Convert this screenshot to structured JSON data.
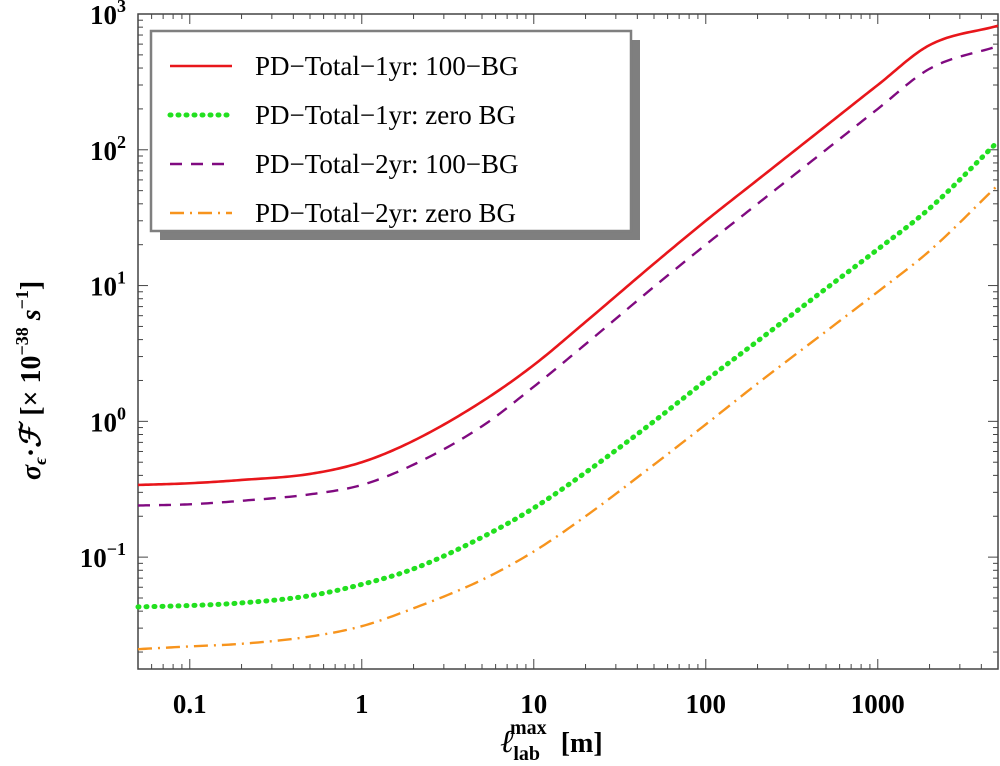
{
  "chart_data": {
    "type": "line",
    "title": "",
    "xlabel": {
      "base": "ℓ",
      "sup": "max",
      "sub": "lab",
      "unit": "[m]"
    },
    "ylabel": {
      "symbol": "σ",
      "sub": "ϵ",
      "dot": "·",
      "symbol2": "ℱ",
      "bracket_open": "[× 10",
      "exp": "−38",
      "unit": " s",
      "unit_exp": "−1",
      "bracket_close": "]"
    },
    "xscale": "log",
    "yscale": "log",
    "xlim": [
      0.05,
      5000
    ],
    "ylim": [
      0.015,
      1000
    ],
    "grid": false,
    "legend_position": "top-left",
    "x_ticks": [
      {
        "value": 0.1,
        "label": "0.1"
      },
      {
        "value": 1,
        "label": "1"
      },
      {
        "value": 10,
        "label": "10"
      },
      {
        "value": 100,
        "label": "100"
      },
      {
        "value": 1000,
        "label": "1000"
      }
    ],
    "y_ticks": [
      {
        "value": 0.1,
        "base": "10",
        "exp": "−1"
      },
      {
        "value": 1,
        "base": "10",
        "exp": "0"
      },
      {
        "value": 10,
        "base": "10",
        "exp": "1"
      },
      {
        "value": 100,
        "base": "10",
        "exp": "2"
      },
      {
        "value": 1000,
        "base": "10",
        "exp": "3"
      }
    ],
    "x": [
      0.05,
      0.1,
      0.2,
      0.5,
      1,
      2,
      5,
      10,
      20,
      50,
      100,
      200,
      500,
      1000,
      2000,
      5000
    ],
    "series": [
      {
        "name": "PD−Total−1yr: 100−BG",
        "color": "#e8161b",
        "style": "solid",
        "values": [
          0.34,
          0.35,
          0.37,
          0.41,
          0.5,
          0.72,
          1.4,
          2.6,
          5.4,
          14.5,
          30,
          60,
          150,
          300,
          590,
          820
        ]
      },
      {
        "name": "PD−Total−1yr: zero BG",
        "color": "#22e01f",
        "style": "dotted",
        "values": [
          0.043,
          0.044,
          0.046,
          0.052,
          0.063,
          0.082,
          0.14,
          0.23,
          0.42,
          1.0,
          2.0,
          3.9,
          9.5,
          18.5,
          37,
          115
        ]
      },
      {
        "name": "PD−Total−2yr: 100−BG",
        "color": "#800a80",
        "style": "dashed",
        "values": [
          0.24,
          0.245,
          0.26,
          0.29,
          0.34,
          0.48,
          0.92,
          1.8,
          3.7,
          9.8,
          20,
          40,
          100,
          200,
          395,
          580
        ]
      },
      {
        "name": "PD−Total−2yr: zero BG",
        "color": "#f7941d",
        "style": "dashdot",
        "values": [
          0.021,
          0.022,
          0.023,
          0.026,
          0.031,
          0.042,
          0.068,
          0.11,
          0.2,
          0.48,
          0.95,
          1.9,
          4.6,
          9.0,
          18,
          55
        ]
      }
    ]
  }
}
